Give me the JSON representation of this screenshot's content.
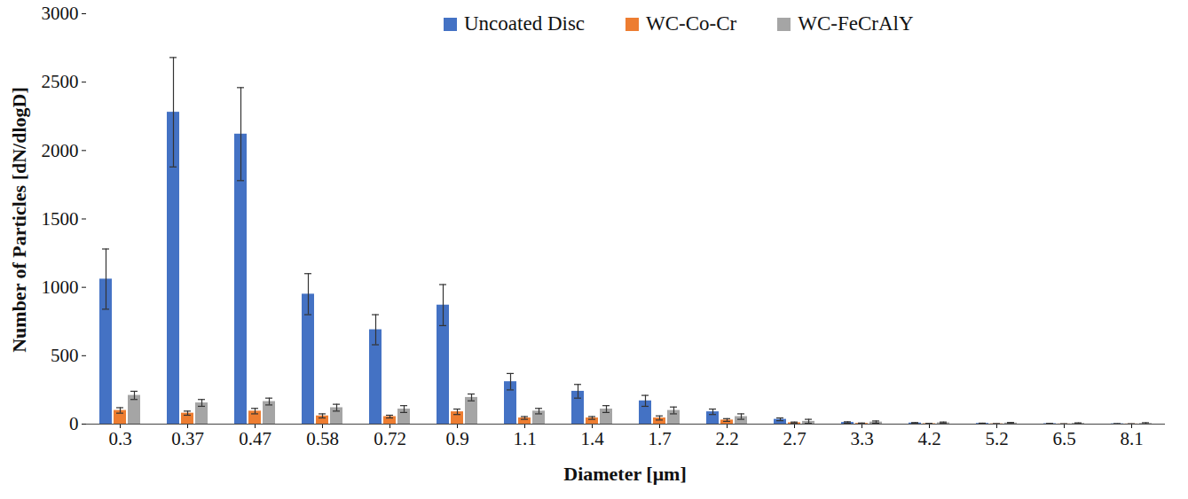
{
  "chart_data": {
    "type": "bar",
    "x_label": "Diameter [μm]",
    "y_label": "Number of Particles [dN/dlogD]",
    "categories": [
      "0.3",
      "0.37",
      "0.47",
      "0.58",
      "0.72",
      "0.9",
      "1.1",
      "1.4",
      "1.7",
      "2.2",
      "2.7",
      "3.3",
      "4.2",
      "5.2",
      "6.5",
      "8.1"
    ],
    "series": [
      {
        "name": "Uncoated Disc",
        "color": "#4472c4",
        "values": [
          1060,
          2280,
          2120,
          950,
          690,
          870,
          310,
          240,
          170,
          90,
          35,
          12,
          8,
          5,
          3,
          2
        ],
        "errors": [
          220,
          400,
          340,
          150,
          110,
          150,
          60,
          50,
          40,
          20,
          10,
          5,
          3,
          2,
          2,
          1
        ]
      },
      {
        "name": "WC-Co-Cr",
        "color": "#ed7d31",
        "values": [
          100,
          80,
          95,
          60,
          55,
          90,
          45,
          45,
          45,
          30,
          10,
          5,
          3,
          2,
          1,
          1
        ],
        "errors": [
          20,
          15,
          20,
          15,
          10,
          20,
          10,
          10,
          15,
          10,
          5,
          3,
          2,
          1,
          1,
          1
        ]
      },
      {
        "name": "WC-FeCrAlY",
        "color": "#a5a5a5",
        "values": [
          210,
          155,
          165,
          120,
          110,
          195,
          95,
          110,
          100,
          55,
          20,
          15,
          10,
          8,
          6,
          5
        ],
        "errors": [
          30,
          25,
          25,
          25,
          25,
          25,
          20,
          25,
          25,
          20,
          15,
          8,
          5,
          4,
          3,
          5
        ]
      }
    ],
    "ylim": [
      0,
      3000
    ],
    "yticks": [
      0,
      500,
      1000,
      1500,
      2000,
      2500,
      3000
    ],
    "grid": false,
    "legend": "top"
  }
}
